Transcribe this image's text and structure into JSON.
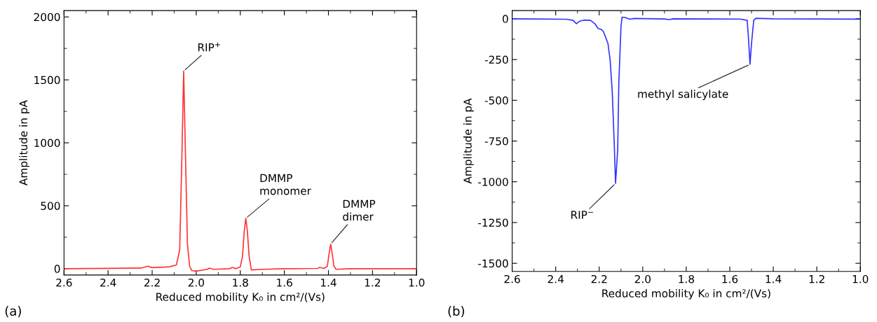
{
  "chart_data": [
    {
      "type": "line",
      "xlabel": "Reduced mobility K₀ in cm²/(Vs)",
      "ylabel": "Amplitude in pA",
      "x": [
        2.6,
        2.4,
        2.25,
        2.22,
        2.2,
        2.12,
        2.09,
        2.075,
        2.065,
        2.057,
        2.05,
        2.04,
        2.03,
        2.02,
        2.0,
        1.95,
        1.94,
        1.92,
        1.85,
        1.835,
        1.82,
        1.8,
        1.79,
        1.782,
        1.775,
        1.768,
        1.76,
        1.75,
        1.7,
        1.6,
        1.45,
        1.44,
        1.42,
        1.405,
        1.397,
        1.39,
        1.383,
        1.375,
        1.365,
        1.3,
        1.0
      ],
      "series": [
        {
          "color": "#ff3333",
          "values": [
            0,
            3,
            5,
            20,
            8,
            15,
            30,
            150,
            900,
            1570,
            1000,
            200,
            20,
            -15,
            -20,
            -5,
            5,
            -5,
            0,
            10,
            0,
            15,
            100,
            300,
            400,
            300,
            100,
            -10,
            -5,
            0,
            2,
            10,
            2,
            20,
            120,
            195,
            120,
            20,
            -5,
            0,
            0
          ]
        }
      ],
      "xlim": [
        2.6,
        1.0
      ],
      "ylim": [
        -50,
        2050
      ],
      "xticks": [
        {
          "value": 2.6,
          "label": "2.6"
        },
        {
          "value": 2.5,
          "label": null
        },
        {
          "value": 2.4,
          "label": "2.4"
        },
        {
          "value": 2.3,
          "label": null
        },
        {
          "value": 2.2,
          "label": "2.2"
        },
        {
          "value": 2.1,
          "label": null
        },
        {
          "value": 2.0,
          "label": "2.0"
        },
        {
          "value": 1.9,
          "label": null
        },
        {
          "value": 1.8,
          "label": "1.8"
        },
        {
          "value": 1.7,
          "label": null
        },
        {
          "value": 1.6,
          "label": "1.6"
        },
        {
          "value": 1.5,
          "label": null
        },
        {
          "value": 1.4,
          "label": "1.4"
        },
        {
          "value": 1.3,
          "label": null
        },
        {
          "value": 1.2,
          "label": "1.2"
        },
        {
          "value": 1.1,
          "label": null
        },
        {
          "value": 1.0,
          "label": "1.0"
        }
      ],
      "yticks": [
        0,
        {
          "value": 250,
          "label": null
        },
        500,
        {
          "value": 750,
          "label": null
        },
        1000,
        {
          "value": 1250,
          "label": null
        },
        1500,
        {
          "value": 1750,
          "label": null
        },
        2000
      ],
      "annotations": [
        {
          "text": "RIP$^{+}$",
          "x": 2.057,
          "y": 1570
        },
        {
          "text": "DMMP\nmonomer",
          "x": 1.775,
          "y": 400
        },
        {
          "text": "DMMP\ndimer",
          "x": 1.39,
          "y": 195
        },
        "(a)"
      ]
    },
    {
      "type": "line",
      "xlabel": "Reduced mobility K₀ in cm²/(Vs)",
      "ylabel": "Amplitude in pA",
      "x": [
        2.6,
        2.35,
        2.32,
        2.305,
        2.29,
        2.27,
        2.24,
        2.22,
        2.205,
        2.19,
        2.18,
        2.16,
        2.15,
        2.14,
        2.13,
        2.125,
        2.115,
        2.11,
        2.1,
        2.095,
        2.08,
        2.06,
        2.04,
        1.9,
        1.88,
        1.86,
        1.55,
        1.52,
        1.515,
        1.507,
        1.5,
        1.49,
        1.48,
        1.4,
        1.0
      ],
      "series": [
        {
          "color": "#3333ff",
          "values": [
            0,
            -3,
            -10,
            -30,
            -15,
            -8,
            -10,
            -30,
            -60,
            -65,
            -80,
            -150,
            -250,
            -450,
            -800,
            -1010,
            -800,
            -400,
            -50,
            10,
            8,
            -3,
            2,
            -1,
            -5,
            0,
            -2,
            -10,
            -100,
            -280,
            -150,
            -10,
            3,
            0,
            -2
          ]
        }
      ],
      "xlim": [
        2.6,
        1.0
      ],
      "ylim": [
        -1550,
        50
      ],
      "xticks": [
        {
          "value": 2.6,
          "label": "2.6"
        },
        {
          "value": 2.5,
          "label": null
        },
        {
          "value": 2.4,
          "label": "2.4"
        },
        {
          "value": 2.3,
          "label": null
        },
        {
          "value": 2.2,
          "label": "2.2"
        },
        {
          "value": 2.1,
          "label": null
        },
        {
          "value": 2.0,
          "label": "2.0"
        },
        {
          "value": 1.9,
          "label": null
        },
        {
          "value": 1.8,
          "label": "1.8"
        },
        {
          "value": 1.7,
          "label": null
        },
        {
          "value": 1.6,
          "label": "1.6"
        },
        {
          "value": 1.5,
          "label": null
        },
        {
          "value": 1.4,
          "label": "1.4"
        },
        {
          "value": 1.3,
          "label": null
        },
        {
          "value": 1.2,
          "label": "1.2"
        },
        {
          "value": 1.1,
          "label": null
        },
        {
          "value": 1.0,
          "label": "1.0"
        }
      ],
      "yticks": [
        -1500,
        {
          "value": -1375,
          "label": null
        },
        -1250,
        {
          "value": -1125,
          "label": null
        },
        -1000,
        {
          "value": -875,
          "label": null
        },
        -750,
        {
          "value": -625,
          "label": null
        },
        -500,
        {
          "value": -375,
          "label": null
        },
        -250,
        {
          "value": -125,
          "label": null
        },
        0
      ],
      "annotations": [
        {
          "text": "RIP$^{−}$",
          "x": 2.125,
          "y": -1010
        },
        {
          "text": "methyl salicylate",
          "x": 1.507,
          "y": -280
        },
        "(b)"
      ]
    }
  ]
}
